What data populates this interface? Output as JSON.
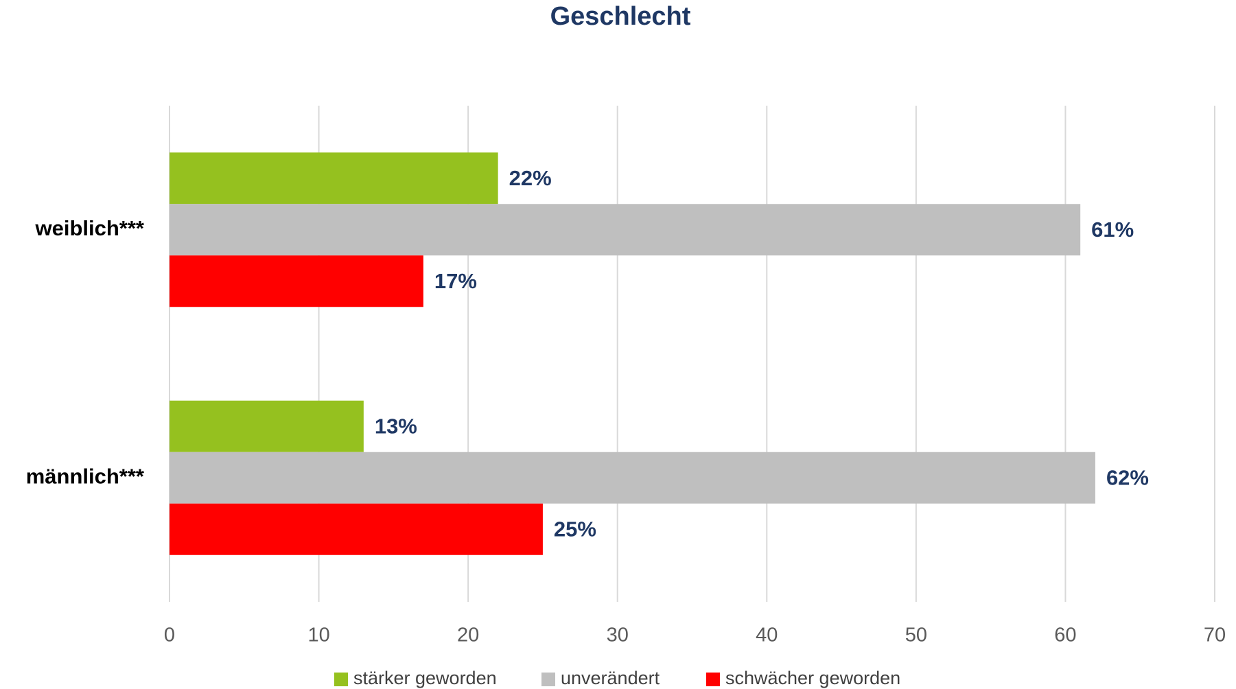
{
  "chart_data": {
    "type": "hbar",
    "title": "Geschlecht",
    "categories": [
      "weiblich***",
      "männlich***"
    ],
    "series": [
      {
        "name": "stärker geworden",
        "color": "#95c11f",
        "values": [
          22,
          13
        ],
        "value_labels": [
          "22%",
          "13%"
        ]
      },
      {
        "name": "unverändert",
        "color": "#bfbfbf",
        "values": [
          61,
          62
        ],
        "value_labels": [
          "61%",
          "62%"
        ]
      },
      {
        "name": "schwächer geworden",
        "color": "#ff0000",
        "values": [
          17,
          25
        ],
        "value_labels": [
          "17%",
          "25%"
        ]
      }
    ],
    "xlim": [
      0,
      70
    ],
    "xticks": [
      0,
      10,
      20,
      30,
      40,
      50,
      60,
      70
    ],
    "grid": true,
    "legend": "bottom"
  }
}
